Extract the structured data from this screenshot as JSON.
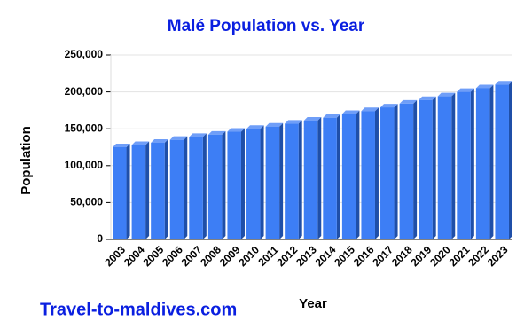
{
  "chart_data": {
    "type": "bar",
    "title": "Malé Population vs. Year",
    "x_label": "Year",
    "y_label": "Population",
    "watermark": "Travel-to-maldives.com",
    "categories": [
      "2003",
      "2004",
      "2005",
      "2006",
      "2007",
      "2008",
      "2009",
      "2010",
      "2011",
      "2012",
      "2013",
      "2014",
      "2015",
      "2016",
      "2017",
      "2018",
      "2019",
      "2020",
      "2021",
      "2022",
      "2023"
    ],
    "values": [
      125000,
      128000,
      131000,
      135000,
      139000,
      142000,
      146000,
      150000,
      153000,
      157000,
      161000,
      165000,
      170000,
      174000,
      179000,
      184000,
      189000,
      194000,
      200000,
      205000,
      210000
    ],
    "color": "#3d7ef5",
    "ylim": [
      0,
      250000
    ],
    "yticks": [
      0,
      {
        "value": 50000,
        "label": "50,000"
      },
      {
        "value": 100000,
        "label": "100,000"
      },
      {
        "value": 150000,
        "label": "150,000"
      },
      {
        "value": 200000,
        "label": "200,000"
      },
      {
        "value": 250000,
        "label": "250,000"
      }
    ],
    "grid": true
  }
}
